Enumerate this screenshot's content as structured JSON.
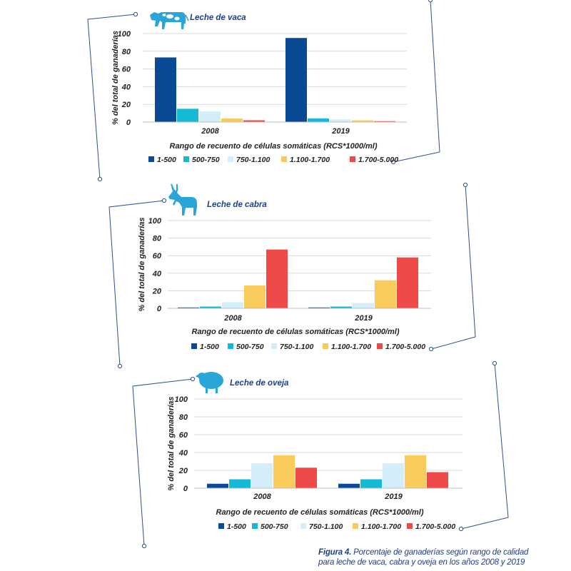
{
  "palette": {
    "accent": "#1f3f8a",
    "frame": "#2e4f8e",
    "grid": "#d9d9d9",
    "axis_text": "#222222"
  },
  "chart_data": [
    {
      "type": "bar",
      "title": "Leche de vaca",
      "icon": "cow-icon",
      "ylabel": "% del total de ganaderías",
      "xlabel": "Rango de recuento de células somáticas (RCS*1000/ml)",
      "ylim": [
        0,
        100
      ],
      "yticks": [
        "0",
        "20",
        "40",
        "60",
        "80",
        "100"
      ],
      "grid": true,
      "legend_position": "bottom",
      "categories": [
        "2008",
        "2019"
      ],
      "series": [
        {
          "name": "1-500",
          "color": "#0a4a94",
          "values": [
            73,
            95
          ]
        },
        {
          "name": "500-750",
          "color": "#14b9d6",
          "values": [
            15,
            4
          ]
        },
        {
          "name": "750-1.100",
          "color": "#d4eef9",
          "values": [
            12,
            3
          ]
        },
        {
          "name": "1.100-1.700",
          "color": "#f8cc5c",
          "values": [
            4,
            2
          ]
        },
        {
          "name": "1.700-5.000",
          "color": "#ef4a4a",
          "values": [
            2,
            1
          ]
        }
      ]
    },
    {
      "type": "bar",
      "title": "Leche de cabra",
      "icon": "goat-icon",
      "ylabel": "% del total de ganaderías",
      "xlabel": "Rango de recuento de células somáticas (RCS*1000/ml)",
      "ylim": [
        0,
        100
      ],
      "yticks": [
        "0",
        "20",
        "40",
        "60",
        "80",
        "100"
      ],
      "grid": true,
      "legend_position": "bottom",
      "categories": [
        "2008",
        "2019"
      ],
      "series": [
        {
          "name": "1-500",
          "color": "#0a4a94",
          "values": [
            1,
            1
          ]
        },
        {
          "name": "500-750",
          "color": "#14b9d6",
          "values": [
            2,
            2
          ]
        },
        {
          "name": "750-1.100",
          "color": "#d4eef9",
          "values": [
            7,
            6
          ]
        },
        {
          "name": "1.100-1.700",
          "color": "#f8cc5c",
          "values": [
            26,
            32
          ]
        },
        {
          "name": "1.700-5.000",
          "color": "#ef4a4a",
          "values": [
            67,
            58
          ]
        }
      ]
    },
    {
      "type": "bar",
      "title": "Leche de oveja",
      "icon": "sheep-icon",
      "ylabel": "% del total de ganaderías",
      "xlabel": "Rango de recuento de células somáticas (RCS*1000/ml)",
      "ylim": [
        0,
        100
      ],
      "yticks": [
        "0",
        "20",
        "40",
        "60",
        "80",
        "100"
      ],
      "grid": true,
      "legend_position": "bottom",
      "categories": [
        "2008",
        "2019"
      ],
      "series": [
        {
          "name": "1-500",
          "color": "#0a4a94",
          "values": [
            5,
            5
          ]
        },
        {
          "name": "500-750",
          "color": "#14b9d6",
          "values": [
            10,
            10
          ]
        },
        {
          "name": "750-1.100",
          "color": "#d4eef9",
          "values": [
            28,
            28
          ]
        },
        {
          "name": "1.100-1.700",
          "color": "#f8cc5c",
          "values": [
            37,
            37
          ]
        },
        {
          "name": "1.700-5.000",
          "color": "#ef4a4a",
          "values": [
            23,
            18
          ]
        }
      ]
    }
  ],
  "caption": {
    "label": "Figura 4.",
    "line1": "Porcentaje de ganaderías según rango de calidad",
    "line2": "para leche de vaca, cabra y oveja en los años 2008 y 2019"
  }
}
